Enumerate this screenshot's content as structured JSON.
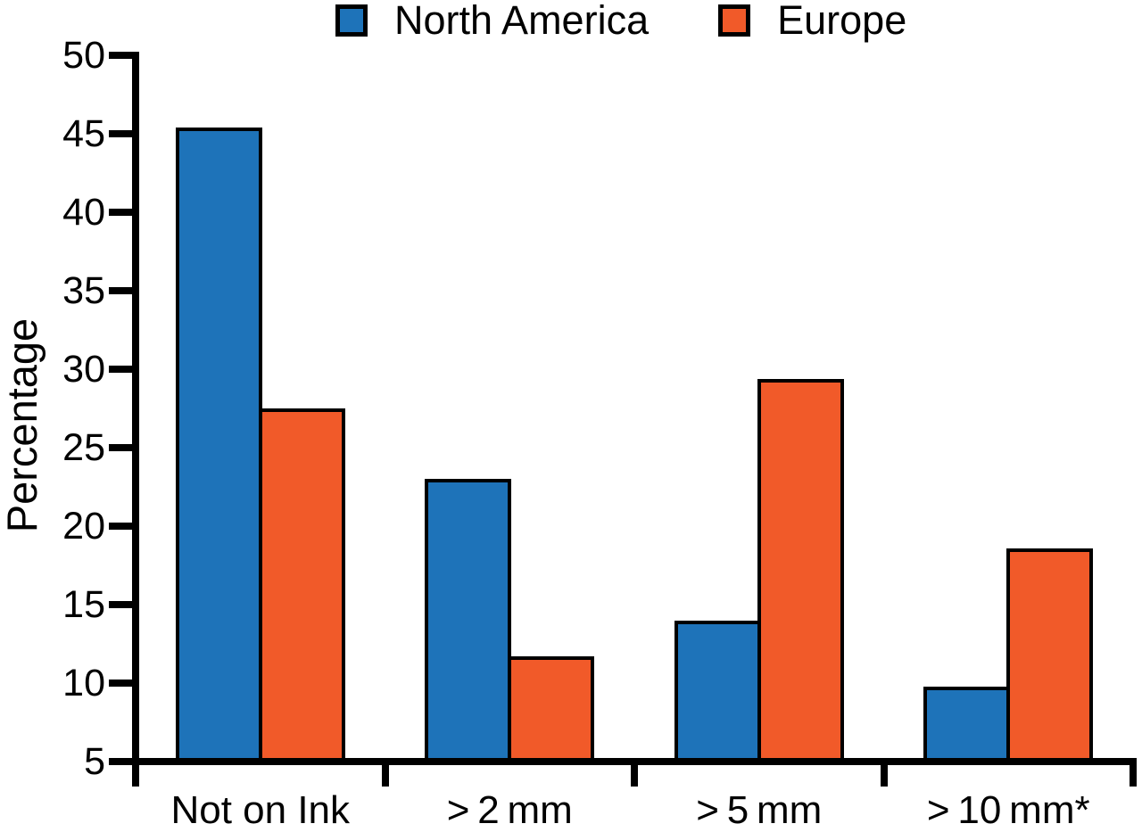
{
  "chart_data": {
    "type": "bar",
    "title": "",
    "ylabel": "Percentage",
    "xlabel": "",
    "ylim": [
      5,
      50
    ],
    "yticks": [
      5,
      10,
      15,
      20,
      25,
      30,
      35,
      40,
      45,
      50
    ],
    "categories": [
      "Not on Ink",
      "> 2 mm",
      "> 5 mm",
      "> 10 mm*"
    ],
    "series": [
      {
        "name": "North America",
        "color": "#1E73B9",
        "values": [
          45.4,
          23.0,
          14.0,
          9.8
        ]
      },
      {
        "name": "Europe",
        "color": "#F15A29",
        "values": [
          27.5,
          11.7,
          29.4,
          18.6
        ]
      }
    ],
    "legend_position": "top-center",
    "grid": false,
    "baseline_value": 5,
    "bar_outline_color": "#000000",
    "axis_color": "#000000"
  }
}
